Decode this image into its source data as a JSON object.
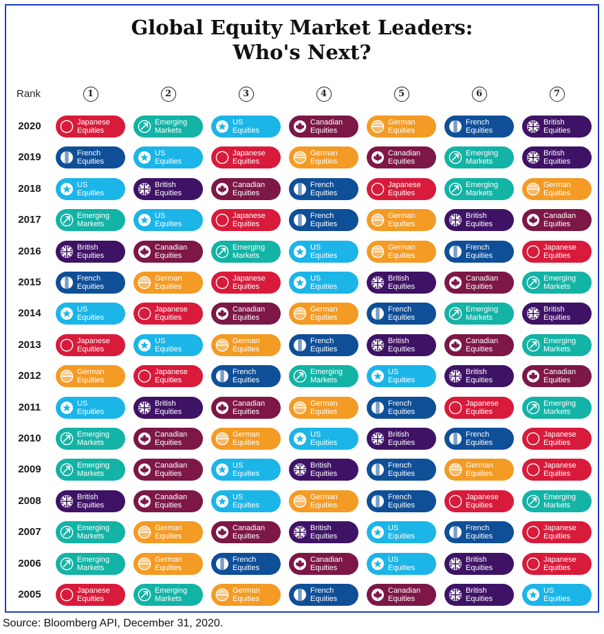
{
  "title_line1": "Global Equity Market Leaders:",
  "title_line2": "Who's Next?",
  "rank_label": "Rank",
  "source": "Source: Bloomberg API, December 31, 2020.",
  "colors": {
    "Japanese": "#d81b3b",
    "Emerging": "#13b3a5",
    "US": "#1cb5e8",
    "Canadian": "#7c1746",
    "German": "#f39b25",
    "French": "#0f4f98",
    "British": "#3e1365"
  },
  "icons": {
    "Japanese": "circle-flag-icon",
    "Emerging": "trend-arrow-icon",
    "US": "star-icon",
    "Canadian": "maple-leaf-icon",
    "German": "stripes-icon",
    "French": "tricolor-icon",
    "British": "union-jack-icon"
  },
  "chart_data": {
    "type": "table",
    "title": "Global Equity Market Leaders: Who's Next?",
    "columns": [
      "1",
      "2",
      "3",
      "4",
      "5",
      "6",
      "7"
    ],
    "rows": [
      {
        "year": "2020",
        "ranks": [
          "Japanese Equities",
          "Emerging Markets",
          "US Equities",
          "Canadian Equities",
          "German Equities",
          "French Equities",
          "British Equities"
        ]
      },
      {
        "year": "2019",
        "ranks": [
          "French Equities",
          "US Equities",
          "Japanese Equities",
          "German Equities",
          "Canadian Equities",
          "Emerging Markets",
          "British Equities"
        ]
      },
      {
        "year": "2018",
        "ranks": [
          "US Equities",
          "British Equities",
          "Canadian Equities",
          "French Equities",
          "Japanese Equities",
          "Emerging Markets",
          "German Equities"
        ]
      },
      {
        "year": "2017",
        "ranks": [
          "Emerging Markets",
          "US Equities",
          "Japanese Equities",
          "French Equities",
          "German Equities",
          "British Equities",
          "Canadian Equities"
        ]
      },
      {
        "year": "2016",
        "ranks": [
          "British Equities",
          "Canadian Equities",
          "Emerging Markets",
          "US Equities",
          "German Equities",
          "French Equities",
          "Japanese Equities"
        ]
      },
      {
        "year": "2015",
        "ranks": [
          "French Equities",
          "German Equities",
          "Japanese Equities",
          "US Equities",
          "British Equities",
          "Canadian Equities",
          "Emerging Markets"
        ]
      },
      {
        "year": "2014",
        "ranks": [
          "US Equities",
          "Japanese Equities",
          "Canadian Equities",
          "German Equities",
          "French Equities",
          "Emerging Markets",
          "British Equities"
        ]
      },
      {
        "year": "2013",
        "ranks": [
          "Japanese Equities",
          "US Equities",
          "German Equities",
          "French Equities",
          "British Equities",
          "Canadian Equities",
          "Emerging Markets"
        ]
      },
      {
        "year": "2012",
        "ranks": [
          "German Equities",
          "Japanese Equities",
          "French Equities",
          "Emerging Markets",
          "US Equities",
          "British Equities",
          "Canadian Equities"
        ]
      },
      {
        "year": "2011",
        "ranks": [
          "US Equities",
          "British Equities",
          "Canadian Equities",
          "German Equities",
          "French Equities",
          "Japanese Equities",
          "Emerging Markets"
        ]
      },
      {
        "year": "2010",
        "ranks": [
          "Emerging Markets",
          "Canadian Equities",
          "German Equities",
          "US Equities",
          "British Equities",
          "French Equities",
          "Japanese Equities"
        ]
      },
      {
        "year": "2009",
        "ranks": [
          "Emerging Markets",
          "Canadian Equities",
          "US Equities",
          "British Equities",
          "French Equities",
          "German Equities",
          "Japanese Equities"
        ]
      },
      {
        "year": "2008",
        "ranks": [
          "British Equities",
          "Canadian Equities",
          "US Equities",
          "German Equities",
          "French Equities",
          "Japanese Equities",
          "Emerging Markets"
        ]
      },
      {
        "year": "2007",
        "ranks": [
          "Emerging Markets",
          "German Equities",
          "Canadian Equities",
          "British Equities",
          "US Equities",
          "French Equities",
          "Japanese Equities"
        ]
      },
      {
        "year": "2006",
        "ranks": [
          "Emerging Markets",
          "German Equities",
          "French Equities",
          "Canadian Equities",
          "US Equities",
          "British Equities",
          "Japanese Equities"
        ]
      },
      {
        "year": "2005",
        "ranks": [
          "Japanese Equities",
          "Emerging Markets",
          "German Equities",
          "French Equities",
          "Canadian Equities",
          "British Equities",
          "US Equities"
        ]
      }
    ]
  }
}
